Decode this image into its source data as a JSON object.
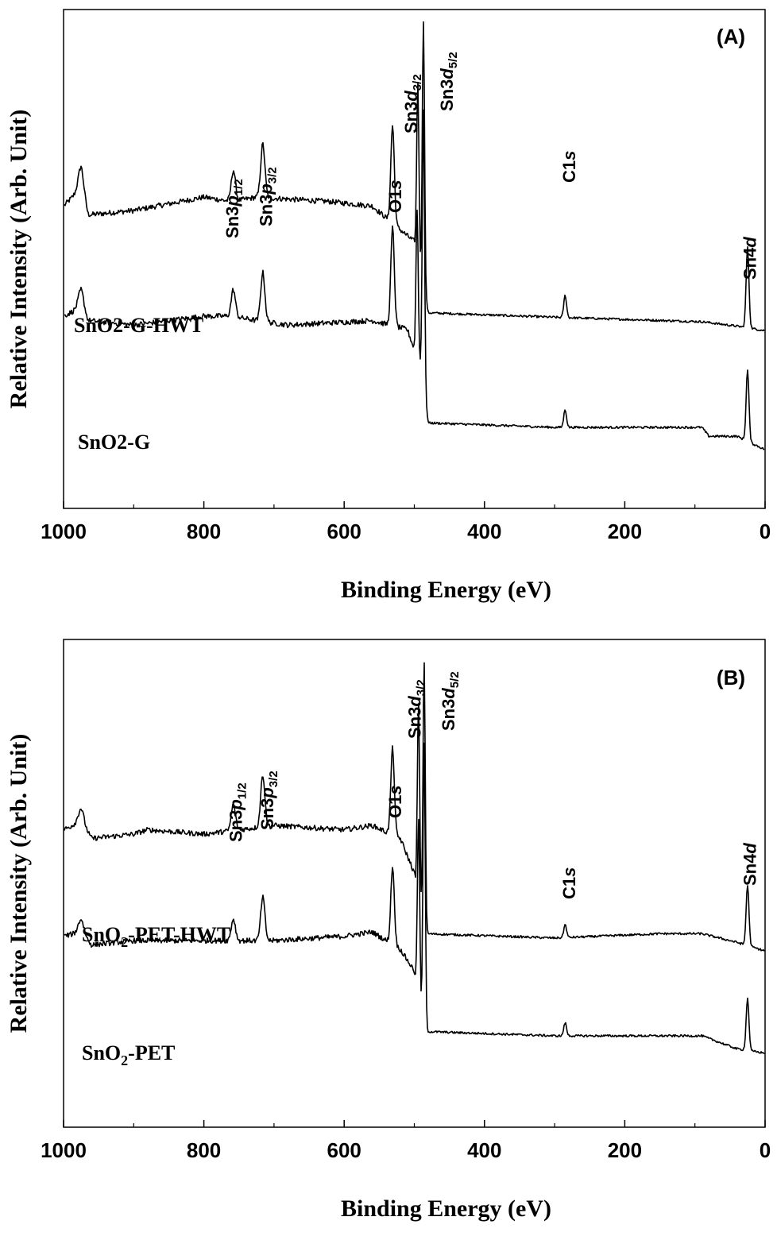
{
  "chart_data": [
    {
      "type": "line",
      "panel_label": "(A)",
      "xlabel": "Binding Energy (eV)",
      "ylabel": "Relative Intensity (Arb. Unit)",
      "xlim": [
        1000,
        0
      ],
      "x_reversed": true,
      "xticks": [
        "1000",
        "800",
        "600",
        "400",
        "200",
        "0"
      ],
      "yticks_visible": false,
      "grid": false,
      "legend": "none",
      "series": [
        {
          "name": "SnO2-G-HWT",
          "name_parts": [
            "SnO",
            "2",
            "-G-HWT"
          ],
          "subscript_style": "inline",
          "baseline_high": 0.52,
          "baseline_low": 0.26,
          "points": [
            [
              1000,
              0.51
            ],
            [
              975,
              0.55
            ],
            [
              965,
              0.49
            ],
            [
              900,
              0.5
            ],
            [
              800,
              0.53
            ],
            [
              760,
              0.52
            ],
            [
              725,
              0.53
            ],
            [
              620,
              0.52
            ],
            [
              560,
              0.51
            ],
            [
              500,
              0.43
            ],
            [
              480,
              0.27
            ],
            [
              300,
              0.26
            ],
            [
              90,
              0.25
            ],
            [
              40,
              0.24
            ],
            [
              0,
              0.23
            ]
          ],
          "peaks": [
            {
              "x": 975,
              "h": 0.05,
              "w": 4
            },
            {
              "x": 758,
              "h": 0.07,
              "w": 3
            },
            {
              "x": 716,
              "h": 0.12,
              "w": 3
            },
            {
              "x": 531,
              "h": 0.22,
              "w": 2.5
            },
            {
              "x": 495,
              "h": 0.4,
              "w": 1.6
            },
            {
              "x": 487,
              "h": 0.6,
              "w": 1.6
            },
            {
              "x": 285,
              "h": 0.05,
              "w": 2
            },
            {
              "x": 25,
              "h": 0.18,
              "w": 2
            }
          ]
        },
        {
          "name": "SnO2-G",
          "name_parts": [
            "SnO",
            "2",
            "-G"
          ],
          "subscript_style": "inline",
          "baseline_high": 0.24,
          "baseline_low": 0.0,
          "points": [
            [
              1000,
              0.25
            ],
            [
              975,
              0.27
            ],
            [
              965,
              0.24
            ],
            [
              900,
              0.23
            ],
            [
              800,
              0.25
            ],
            [
              760,
              0.25
            ],
            [
              725,
              0.24
            ],
            [
              680,
              0.23
            ],
            [
              560,
              0.24
            ],
            [
              510,
              0.22
            ],
            [
              490,
              0.13
            ],
            [
              480,
              0.01
            ],
            [
              300,
              0.0
            ],
            [
              90,
              0.0
            ],
            [
              80,
              -0.02
            ],
            [
              40,
              -0.02
            ],
            [
              0,
              -0.05
            ]
          ],
          "peaks": [
            {
              "x": 975,
              "h": 0.04,
              "w": 4
            },
            {
              "x": 758,
              "h": 0.06,
              "w": 3
            },
            {
              "x": 716,
              "h": 0.11,
              "w": 3
            },
            {
              "x": 531,
              "h": 0.22,
              "w": 2.5
            },
            {
              "x": 496,
              "h": 0.33,
              "w": 1.6
            },
            {
              "x": 487,
              "h": 0.62,
              "w": 1.6
            },
            {
              "x": 285,
              "h": 0.04,
              "w": 2
            },
            {
              "x": 25,
              "h": 0.16,
              "w": 2
            }
          ]
        }
      ],
      "annotations": [
        {
          "text": "Sn3p1/2",
          "parts": [
            "Sn3",
            "p",
            "1/2"
          ],
          "x": 760
        },
        {
          "text": "Sn3p3/2",
          "parts": [
            "Sn3",
            "p",
            "3/2"
          ],
          "x": 712
        },
        {
          "text": "O1s",
          "parts": [
            "O1",
            "s",
            ""
          ],
          "x": 528
        },
        {
          "text": "Sn3d3/2",
          "parts": [
            "Sn3",
            "d",
            "3/2"
          ],
          "x": 505
        },
        {
          "text": "Sn3d5/2",
          "parts": [
            "Sn3",
            "d",
            "5/2"
          ],
          "x": 454
        },
        {
          "text": "C1s",
          "parts": [
            "C1",
            "s",
            ""
          ],
          "x": 280
        },
        {
          "text": "Sn4d",
          "parts": [
            "Sn4",
            "d",
            ""
          ],
          "x": 22
        }
      ]
    },
    {
      "type": "line",
      "panel_label": "(B)",
      "xlabel": "Binding Energy (eV)",
      "ylabel": "Relative Intensity (Arb. Unit)",
      "xlim": [
        1000,
        0
      ],
      "x_reversed": true,
      "xticks": [
        "1000",
        "800",
        "600",
        "400",
        "200",
        "0"
      ],
      "yticks_visible": false,
      "grid": false,
      "legend": "none",
      "series": [
        {
          "name": "SnO2-PET-HWT",
          "name_parts": [
            "SnO",
            "2",
            "-PET-HWT"
          ],
          "subscript_style": "sub",
          "baseline_high": 0.52,
          "baseline_low": 0.27,
          "points": [
            [
              1000,
              0.52
            ],
            [
              975,
              0.54
            ],
            [
              960,
              0.5
            ],
            [
              900,
              0.51
            ],
            [
              880,
              0.52
            ],
            [
              800,
              0.51
            ],
            [
              700,
              0.53
            ],
            [
              600,
              0.52
            ],
            [
              560,
              0.53
            ],
            [
              520,
              0.5
            ],
            [
              500,
              0.42
            ],
            [
              485,
              0.28
            ],
            [
              300,
              0.27
            ],
            [
              150,
              0.28
            ],
            [
              90,
              0.28
            ],
            [
              40,
              0.26
            ],
            [
              0,
              0.24
            ]
          ],
          "peaks": [
            {
              "x": 975,
              "h": 0.03,
              "w": 4
            },
            {
              "x": 758,
              "h": 0.06,
              "w": 3
            },
            {
              "x": 716,
              "h": 0.12,
              "w": 3
            },
            {
              "x": 531,
              "h": 0.2,
              "w": 2.5
            },
            {
              "x": 494,
              "h": 0.45,
              "w": 1.6
            },
            {
              "x": 486,
              "h": 0.62,
              "w": 1.6
            },
            {
              "x": 285,
              "h": 0.03,
              "w": 2
            },
            {
              "x": 25,
              "h": 0.14,
              "w": 2
            }
          ]
        },
        {
          "name": "SnO2-PET",
          "name_parts": [
            "SnO",
            "2",
            "-PET"
          ],
          "subscript_style": "sub",
          "baseline_high": 0.22,
          "baseline_low": 0.0,
          "points": [
            [
              1000,
              0.23
            ],
            [
              975,
              0.24
            ],
            [
              960,
              0.21
            ],
            [
              900,
              0.22
            ],
            [
              800,
              0.22
            ],
            [
              700,
              0.22
            ],
            [
              600,
              0.23
            ],
            [
              560,
              0.24
            ],
            [
              520,
              0.2
            ],
            [
              500,
              0.15
            ],
            [
              485,
              0.01
            ],
            [
              300,
              0.0
            ],
            [
              150,
              0.0
            ],
            [
              90,
              0.0
            ],
            [
              40,
              -0.03
            ],
            [
              0,
              -0.04
            ]
          ],
          "peaks": [
            {
              "x": 975,
              "h": 0.03,
              "w": 4
            },
            {
              "x": 758,
              "h": 0.05,
              "w": 3
            },
            {
              "x": 716,
              "h": 0.1,
              "w": 3
            },
            {
              "x": 531,
              "h": 0.18,
              "w": 2.5
            },
            {
              "x": 494,
              "h": 0.41,
              "w": 1.6
            },
            {
              "x": 486,
              "h": 0.66,
              "w": 1.6
            },
            {
              "x": 285,
              "h": 0.03,
              "w": 2
            },
            {
              "x": 25,
              "h": 0.12,
              "w": 2
            }
          ]
        }
      ],
      "annotations": [
        {
          "text": "Sn3p1/2",
          "parts": [
            "Sn3",
            "p",
            "1/2"
          ],
          "x": 755
        },
        {
          "text": "Sn3p3/2",
          "parts": [
            "Sn3",
            "p",
            "3/2"
          ],
          "x": 710
        },
        {
          "text": "O1s",
          "parts": [
            "O1",
            "s",
            ""
          ],
          "x": 528
        },
        {
          "text": "Sn3d3/2",
          "parts": [
            "Sn3",
            "d",
            "3/2"
          ],
          "x": 500
        },
        {
          "text": "Sn3d5/2",
          "parts": [
            "Sn3",
            "d",
            "5/2"
          ],
          "x": 452
        },
        {
          "text": "C1s",
          "parts": [
            "C1",
            "s",
            ""
          ],
          "x": 280
        },
        {
          "text": "Sn4d",
          "parts": [
            "Sn4",
            "d",
            ""
          ],
          "x": 22
        }
      ]
    }
  ]
}
